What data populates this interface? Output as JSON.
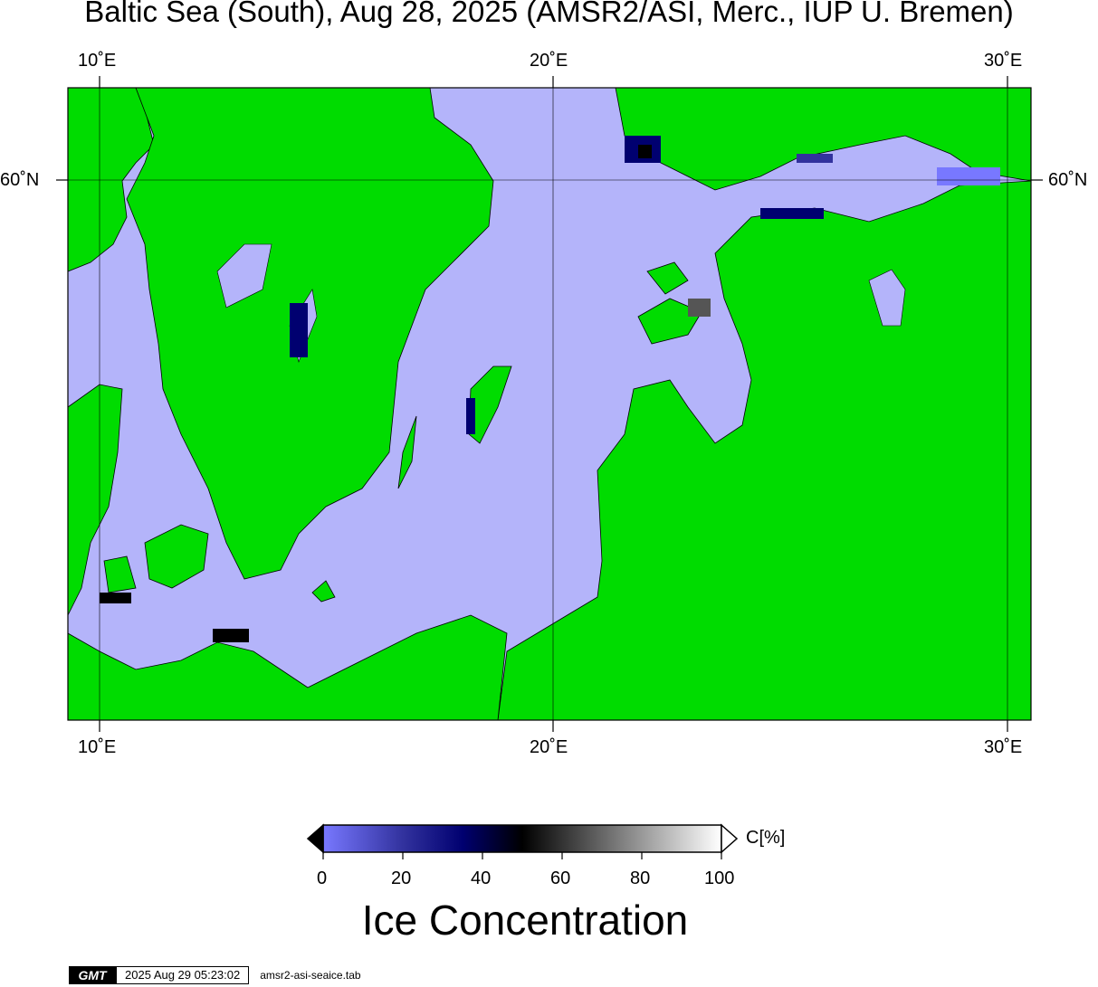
{
  "title": "Baltic Sea (South), Aug 28, 2025 (AMSR2/ASI, Merc., IUP U. Bremen)",
  "axes": {
    "lon_labels": [
      "10˚E",
      "20˚E",
      "30˚E"
    ],
    "lat_labels": [
      "60˚N"
    ]
  },
  "colors": {
    "water_open": "#b4b4fa",
    "land": "#00dc00",
    "ice_sheet": "#808080",
    "border": "#000000"
  },
  "colorbar": {
    "unit_label": "C[%]",
    "ticks": [
      "0",
      "20",
      "40",
      "60",
      "80",
      "100"
    ],
    "title": "Ice Concentration",
    "stops": [
      {
        "value": 0,
        "color": "#7878ff"
      },
      {
        "value": 20,
        "color": "#32329e"
      },
      {
        "value": 35,
        "color": "#000070"
      },
      {
        "value": 50,
        "color": "#000000"
      },
      {
        "value": 100,
        "color": "#ffffff"
      }
    ]
  },
  "footer": {
    "logo": "GMT",
    "timestamp": "2025 Aug 29 05:23:02",
    "source_file": "amsr2-asi-seaice.tab"
  }
}
